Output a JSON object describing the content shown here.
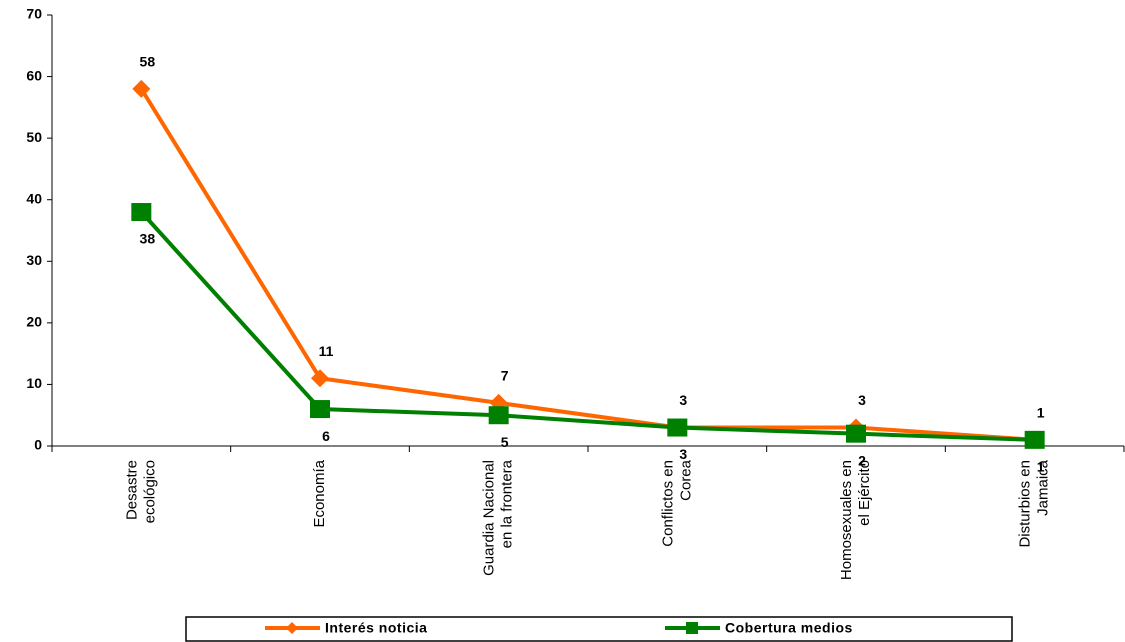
{
  "chart_data": {
    "type": "line",
    "categories": [
      [
        "Desastre",
        "ecológico"
      ],
      [
        "Economía"
      ],
      [
        "Guardia Nacional",
        "en la frontera"
      ],
      [
        "Conflictos en",
        "Corea"
      ],
      [
        "Homosexuales en",
        "el Ejército"
      ],
      [
        "Disturbios en",
        "Jamaica"
      ]
    ],
    "series": [
      {
        "name": "Interés noticia",
        "color": "#ff6600",
        "marker": "diamond",
        "values": [
          58,
          11,
          7,
          3,
          3,
          1
        ]
      },
      {
        "name": "Cobertura medios",
        "color": "#008000",
        "marker": "square",
        "values": [
          38,
          6,
          5,
          3,
          2,
          1
        ]
      }
    ],
    "ylim": [
      0,
      70
    ],
    "yticks": [
      0,
      10,
      20,
      30,
      40,
      50,
      60,
      70
    ],
    "legend": "bottom"
  }
}
